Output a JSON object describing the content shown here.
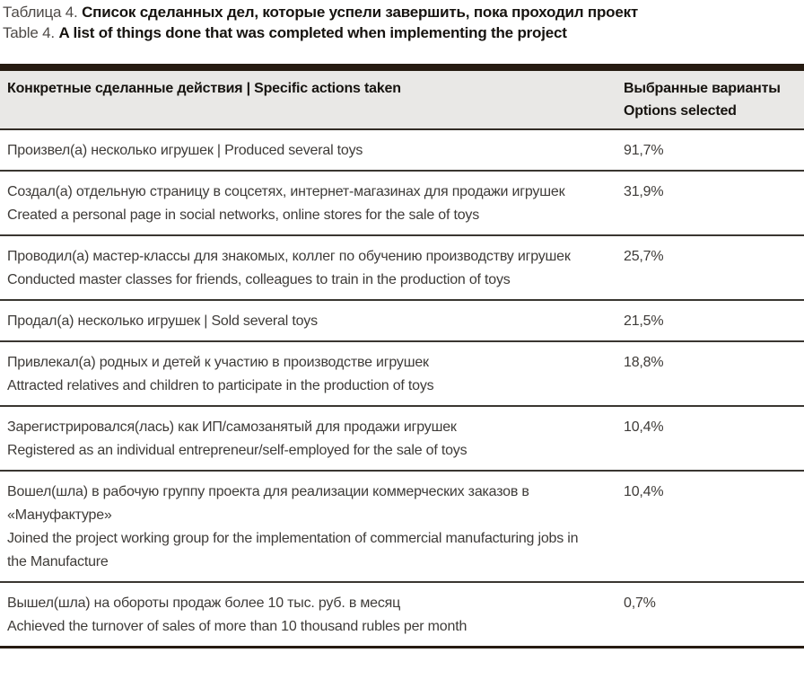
{
  "caption": {
    "ru_prefix": "Таблица 4.",
    "ru_bold": "Список сделанных дел, которые успели завершить, пока проходил проект",
    "en_prefix": "Table 4.",
    "en_bold": "A list of things done that was completed when implementing the project"
  },
  "table": {
    "header": {
      "actions": "Конкретные сделанные действия  |  Specific actions taken",
      "options_ru": "Выбранные варианты",
      "options_en": "Options selected"
    },
    "rows": [
      {
        "paragraphs": [
          "Произвел(а) несколько игрушек  |  Produced several toys"
        ],
        "value": "91,7%"
      },
      {
        "paragraphs": [
          "Создал(а) отдельную страницу в соцсетях, интернет-магазинах для продажи игрушек",
          "Created a personal page in social networks, online stores for the sale of toys"
        ],
        "value": "31,9%"
      },
      {
        "paragraphs": [
          "Проводил(а) мастер-классы для знакомых, коллег по обучению производству игрушек",
          "Conducted master classes for friends, colleagues to train in the production of toys"
        ],
        "value": "25,7%"
      },
      {
        "paragraphs": [
          "Продал(а) несколько игрушек  |  Sold several toys"
        ],
        "value": "21,5%"
      },
      {
        "paragraphs": [
          "Привлекал(а) родных и детей к участию в производстве игрушек",
          "Attracted relatives and children to participate in the production of toys"
        ],
        "value": "18,8%"
      },
      {
        "paragraphs": [
          "Зарегистрировался(лась) как ИП/самозанятый для продажи игрушек",
          "Registered as an individual entrepreneur/self-employed for the sale of toys"
        ],
        "value": "10,4%"
      },
      {
        "paragraphs": [
          "Вошел(шла) в рабочую группу проекта для реализации коммерческих заказов в «Мануфактуре»",
          "Joined the project working group for the implementation of commercial manufacturing jobs in the Manufacture"
        ],
        "value": "10,4%"
      },
      {
        "paragraphs": [
          "Вышел(шла) на обороты продаж более 10 тыс. руб. в месяц",
          "Achieved the turnover of sales of more than 10 thousand rubles per month"
        ],
        "value": "0,7%"
      }
    ]
  },
  "colors": {
    "border_dark": "#261b11",
    "header_bg": "#e9e8e6",
    "text": "#3e3b38",
    "text_bold": "#16130f"
  },
  "chart_data": {
    "type": "table",
    "title": "Таблица 4 / Table 4",
    "categories": [
      "Produced several toys",
      "Created a personal page in social networks, online stores for the sale of toys",
      "Conducted master classes for friends, colleagues to train in the production of toys",
      "Sold several toys",
      "Attracted relatives and children to participate in the production of toys",
      "Registered as an individual entrepreneur/self-employed for the sale of toys",
      "Joined the project working group for the implementation of commercial manufacturing jobs in the Manufacture",
      "Achieved the turnover of sales of more than 10 thousand rubles per month"
    ],
    "values": [
      91.7,
      31.9,
      25.7,
      21.5,
      18.8,
      10.4,
      10.4,
      0.7
    ],
    "value_unit": "%"
  }
}
